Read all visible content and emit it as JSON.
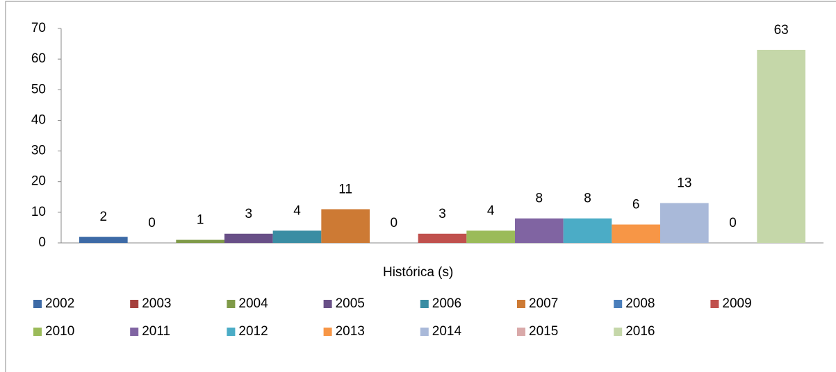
{
  "chart_data": {
    "type": "bar",
    "categories": [
      "Histórica (s)"
    ],
    "series": [
      {
        "name": "2002",
        "color": "#3d6aa6",
        "values": [
          2
        ]
      },
      {
        "name": "2003",
        "color": "#a5403d",
        "values": [
          0
        ]
      },
      {
        "name": "2004",
        "color": "#7f9a48",
        "values": [
          1
        ]
      },
      {
        "name": "2005",
        "color": "#684f87",
        "values": [
          3
        ]
      },
      {
        "name": "2006",
        "color": "#3a8da3",
        "values": [
          4
        ]
      },
      {
        "name": "2007",
        "color": "#cd7a34",
        "values": [
          11
        ]
      },
      {
        "name": "2008",
        "color": "#4a7ebb",
        "values": [
          0
        ]
      },
      {
        "name": "2009",
        "color": "#c0504d",
        "values": [
          3
        ]
      },
      {
        "name": "2010",
        "color": "#9bbb59",
        "values": [
          4
        ]
      },
      {
        "name": "2011",
        "color": "#8064a2",
        "values": [
          8
        ]
      },
      {
        "name": "2012",
        "color": "#4bacc6",
        "values": [
          8
        ]
      },
      {
        "name": "2013",
        "color": "#f79646",
        "values": [
          6
        ]
      },
      {
        "name": "2014",
        "color": "#a9b9d9",
        "values": [
          13
        ]
      },
      {
        "name": "2015",
        "color": "#d9a9a9",
        "values": [
          0
        ]
      },
      {
        "name": "2016",
        "color": "#c5d7a9",
        "values": [
          63
        ]
      }
    ],
    "ylim": [
      0,
      70
    ],
    "yticks": [
      0,
      10,
      20,
      30,
      40,
      50,
      60,
      70
    ],
    "grid": false,
    "legend": "bottom"
  }
}
